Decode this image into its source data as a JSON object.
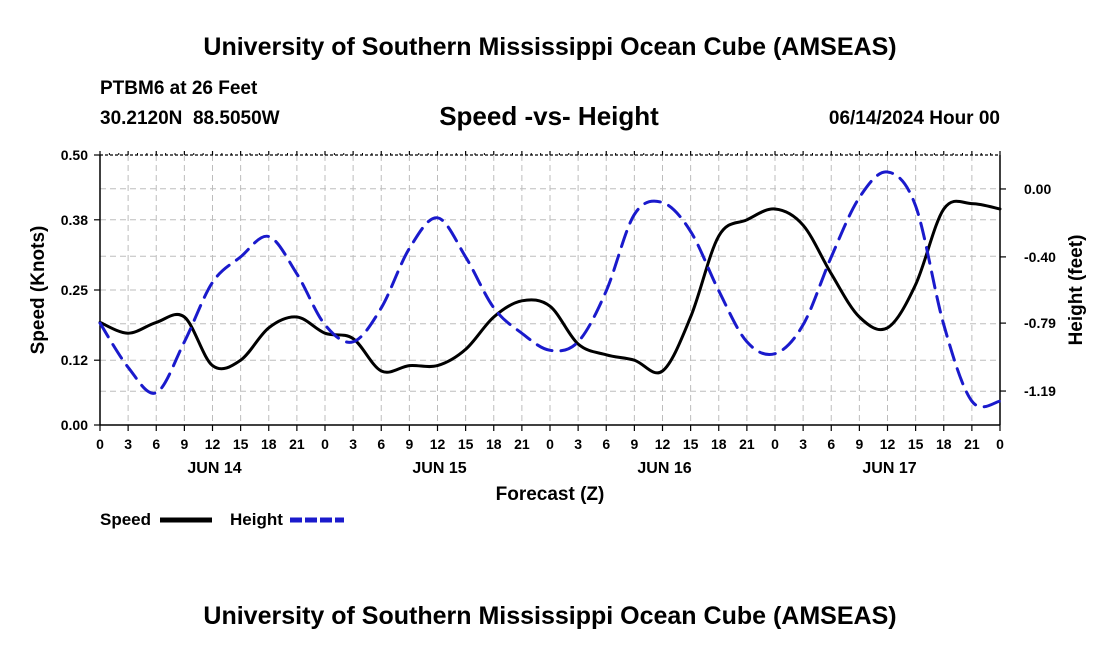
{
  "chart_data": {
    "type": "line",
    "title": "University of Southern Mississippi Ocean Cube (AMSEAS)",
    "footer_title": "University of Southern Mississippi Ocean Cube (AMSEAS)",
    "station": "PTBM6 at 26 Feet",
    "location": "30.2120N  88.5050W",
    "subtitle": "Speed -vs- Height",
    "datetime": "06/14/2024 Hour 00",
    "xlabel": "Forecast (Z)",
    "ylabel_left": "Speed (Knots)",
    "ylabel_right": "Height (feet)",
    "x_ticks": [
      "0",
      "3",
      "6",
      "9",
      "12",
      "15",
      "18",
      "21",
      "0",
      "3",
      "6",
      "9",
      "12",
      "15",
      "18",
      "21",
      "0",
      "3",
      "6",
      "9",
      "12",
      "15",
      "18",
      "21",
      "0",
      "3",
      "6",
      "9",
      "12",
      "15",
      "18",
      "21",
      "0"
    ],
    "day_labels": [
      {
        "label": "JUN 14",
        "hour": 12
      },
      {
        "label": "JUN 15",
        "hour": 36
      },
      {
        "label": "JUN 16",
        "hour": 60
      },
      {
        "label": "JUN 17",
        "hour": 84
      }
    ],
    "xlim": [
      0,
      96
    ],
    "ylim_left": [
      0,
      0.5
    ],
    "ylim_right": [
      -1.39,
      0.2
    ],
    "y_ticks_left": [
      "0.00",
      "0.12",
      "0.25",
      "0.38",
      "0.50"
    ],
    "y_ticks_right": [
      "0.00",
      "-0.40",
      "-0.79",
      "-1.19"
    ],
    "x": [
      0,
      3,
      6,
      9,
      12,
      15,
      18,
      21,
      24,
      27,
      30,
      33,
      36,
      39,
      42,
      45,
      48,
      51,
      54,
      57,
      60,
      63,
      66,
      69,
      72,
      75,
      78,
      81,
      84,
      87,
      90,
      93,
      96
    ],
    "series": [
      {
        "name": "Speed",
        "axis": "left",
        "color": "#000000",
        "dash": "solid",
        "values": [
          0.19,
          0.17,
          0.19,
          0.2,
          0.11,
          0.12,
          0.18,
          0.2,
          0.17,
          0.16,
          0.1,
          0.11,
          0.11,
          0.14,
          0.2,
          0.23,
          0.22,
          0.15,
          0.13,
          0.12,
          0.1,
          0.2,
          0.35,
          0.38,
          0.4,
          0.37,
          0.28,
          0.2,
          0.18,
          0.26,
          0.4,
          0.41,
          0.4
        ]
      },
      {
        "name": "Height",
        "axis": "right",
        "color": "#1a1acc",
        "dash": "dashed",
        "values": [
          -0.79,
          -1.05,
          -1.2,
          -0.9,
          -0.55,
          -0.4,
          -0.28,
          -0.5,
          -0.8,
          -0.9,
          -0.7,
          -0.35,
          -0.17,
          -0.4,
          -0.7,
          -0.85,
          -0.95,
          -0.9,
          -0.6,
          -0.15,
          -0.08,
          -0.25,
          -0.6,
          -0.9,
          -0.97,
          -0.8,
          -0.4,
          -0.05,
          0.1,
          -0.1,
          -0.8,
          -1.25,
          -1.25
        ]
      }
    ],
    "legend": [
      {
        "label": "Speed",
        "color": "#000000",
        "dash": "solid"
      },
      {
        "label": "Height",
        "color": "#1a1acc",
        "dash": "dashed"
      }
    ],
    "legend_position": "bottom-left",
    "grid": true
  }
}
